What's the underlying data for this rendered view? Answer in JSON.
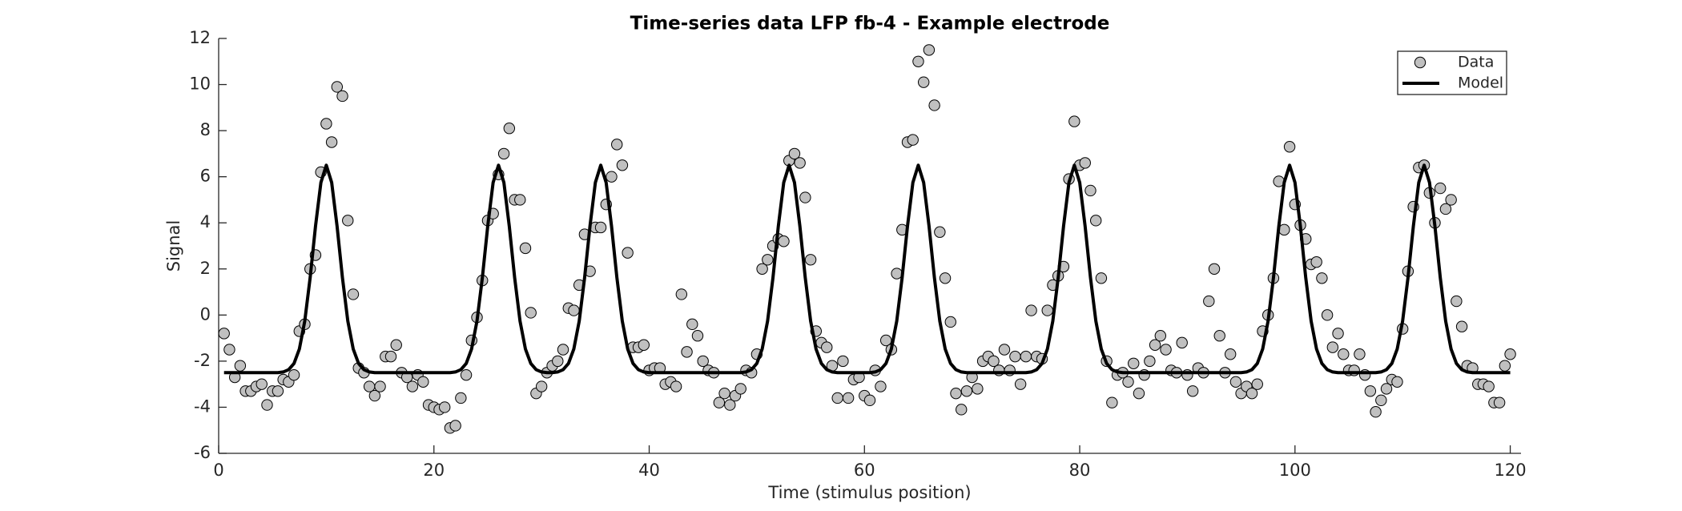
{
  "chart_data": {
    "type": "line",
    "title": "Time-series data LFP fb-4 - Example electrode",
    "xlabel": "Time (stimulus position)",
    "ylabel": "Signal",
    "xlim": [
      0,
      121
    ],
    "xticks": [
      0,
      20,
      40,
      60,
      80,
      100,
      120
    ],
    "ylim": [
      -6,
      12
    ],
    "yticks": [
      -6,
      -4,
      -2,
      0,
      2,
      4,
      6,
      8,
      10,
      12
    ],
    "legend": "northeast",
    "x": [
      0.5,
      1,
      1.5,
      2,
      2.5,
      3,
      3.5,
      4,
      4.5,
      5,
      5.5,
      6,
      6.5,
      7,
      7.5,
      8,
      8.5,
      9,
      9.5,
      10,
      10.5,
      11,
      11.5,
      12,
      12.5,
      13,
      13.5,
      14,
      14.5,
      15,
      15.5,
      16,
      16.5,
      17,
      17.5,
      18,
      18.5,
      19,
      19.5,
      20,
      20.5,
      21,
      21.5,
      22,
      22.5,
      23,
      23.5,
      24,
      24.5,
      25,
      25.5,
      26,
      26.5,
      27,
      27.5,
      28,
      28.5,
      29,
      29.5,
      30,
      30.5,
      31,
      31.5,
      32,
      32.5,
      33,
      33.5,
      34,
      34.5,
      35,
      35.5,
      36,
      36.5,
      37,
      37.5,
      38,
      38.5,
      39,
      39.5,
      40,
      40.5,
      41,
      41.5,
      42,
      42.5,
      43,
      43.5,
      44,
      44.5,
      45,
      45.5,
      46,
      46.5,
      47,
      47.5,
      48,
      48.5,
      49,
      49.5,
      50,
      50.5,
      51,
      51.5,
      52,
      52.5,
      53,
      53.5,
      54,
      54.5,
      55,
      55.5,
      56,
      56.5,
      57,
      57.5,
      58,
      58.5,
      59,
      59.5,
      60,
      60.5,
      61,
      61.5,
      62,
      62.5,
      63,
      63.5,
      64,
      64.5,
      65,
      65.5,
      66,
      66.5,
      67,
      67.5,
      68,
      68.5,
      69,
      69.5,
      70,
      70.5,
      71,
      71.5,
      72,
      72.5,
      73,
      73.5,
      74,
      74.5,
      75,
      75.5,
      76,
      76.5,
      77,
      77.5,
      78,
      78.5,
      79,
      79.5,
      80,
      80.5,
      81,
      81.5,
      82,
      82.5,
      83,
      83.5,
      84,
      84.5,
      85,
      85.5,
      86,
      86.5,
      87,
      87.5,
      88,
      88.5,
      89,
      89.5,
      90,
      90.5,
      91,
      91.5,
      92,
      92.5,
      93,
      93.5,
      94,
      94.5,
      95,
      95.5,
      96,
      96.5,
      97,
      97.5,
      98,
      98.5,
      99,
      99.5,
      100,
      100.5,
      101,
      101.5,
      102,
      102.5,
      103,
      103.5,
      104,
      104.5,
      105,
      105.5,
      106,
      106.5,
      107,
      107.5,
      108,
      108.5,
      109,
      109.5,
      110,
      110.5,
      111,
      111.5,
      112,
      112.5,
      113,
      113.5,
      114,
      114.5,
      115,
      115.5,
      116,
      116.5,
      117,
      117.5,
      118,
      118.5,
      119,
      119.5,
      120
    ],
    "series": [
      {
        "name": "Data",
        "type": "scatter",
        "color": "#c0c0c0",
        "values": [
          -0.8,
          -1.5,
          -2.7,
          -2.2,
          -3.3,
          -3.3,
          -3.1,
          -3.0,
          -3.9,
          -3.3,
          -3.3,
          -2.8,
          -2.9,
          -2.6,
          -0.7,
          -0.4,
          2.0,
          2.6,
          6.2,
          8.3,
          7.5,
          9.9,
          9.5,
          4.1,
          0.9,
          -2.3,
          -2.5,
          -3.1,
          -3.5,
          -3.1,
          -1.8,
          -1.8,
          -1.3,
          -2.5,
          -2.7,
          -3.1,
          -2.6,
          -2.9,
          -3.9,
          -4.0,
          -4.1,
          -4.0,
          -4.9,
          -4.8,
          -3.6,
          -2.6,
          -1.1,
          -0.1,
          1.5,
          4.1,
          4.4,
          6.1,
          7.0,
          8.1,
          5.0,
          5.0,
          2.9,
          0.1,
          -3.4,
          -3.1,
          -2.5,
          -2.2,
          -2.0,
          -1.5,
          0.3,
          0.2,
          1.3,
          3.5,
          1.9,
          3.8,
          3.8,
          4.8,
          6.0,
          7.4,
          6.5,
          2.7,
          -1.4,
          -1.4,
          -1.3,
          -2.4,
          -2.3,
          -2.3,
          -3.0,
          -2.9,
          -3.1,
          0.9,
          -1.6,
          -0.4,
          -0.9,
          -2.0,
          -2.4,
          -2.5,
          -3.8,
          -3.4,
          -3.9,
          -3.5,
          -3.2,
          -2.4,
          -2.5,
          -1.7,
          2.0,
          2.4,
          3.0,
          3.3,
          3.2,
          6.7,
          7.0,
          6.6,
          5.1,
          2.4,
          -0.7,
          -1.2,
          -1.4,
          -2.2,
          -3.6,
          -2.0,
          -3.6,
          -2.8,
          -2.7,
          -3.5,
          -3.7,
          -2.4,
          -3.1,
          -1.1,
          -1.5,
          1.8,
          3.7,
          7.5,
          7.6,
          11.0,
          10.1,
          11.5,
          9.1,
          3.6,
          1.6,
          -0.3,
          -3.4,
          -4.1,
          -3.3,
          -2.7,
          -3.2,
          -2.0,
          -1.8,
          -2.0,
          -2.4,
          -1.5,
          -2.4,
          -1.8,
          -3.0,
          -1.8,
          0.2,
          -1.8,
          -1.9,
          0.2,
          1.3,
          1.7,
          2.1,
          5.9,
          8.4,
          6.5,
          6.6,
          5.4,
          4.1,
          1.6,
          -2.0,
          -3.8,
          -2.6,
          -2.5,
          -2.9,
          -2.1,
          -3.4,
          -2.6,
          -2.0,
          -1.3,
          -0.9,
          -1.5,
          -2.4,
          -2.5,
          -1.2,
          -2.6,
          -3.3,
          -2.3,
          -2.5,
          0.6,
          2.0,
          -0.9,
          -2.5,
          -1.7,
          -2.9,
          -3.4,
          -3.1,
          -3.4,
          -3.0,
          -0.7,
          0.0,
          1.6,
          5.8,
          3.7,
          7.3,
          4.8,
          3.9,
          3.3,
          2.2,
          2.3,
          1.6,
          0.0,
          -1.4,
          -0.8,
          -1.7,
          -2.4,
          -2.4,
          -1.7,
          -2.6,
          -3.3,
          -4.2,
          -3.7,
          -3.2,
          -2.8,
          -2.9,
          -0.6,
          1.9,
          4.7,
          6.4,
          6.5,
          5.3,
          4.0,
          5.5,
          4.6,
          5.0,
          0.6,
          -0.5,
          -2.2,
          -2.3,
          -3.0,
          -3.0,
          -3.1,
          -3.8,
          -3.8,
          -2.2,
          -1.7
        ]
      },
      {
        "name": "Model",
        "type": "line",
        "color": "#000000",
        "values": [
          -2.5,
          -2.5,
          -2.5,
          -2.5,
          -2.5,
          -2.5,
          -2.5,
          -2.5,
          -2.5,
          -2.5,
          -2.5,
          -2.47,
          -2.37,
          -2.1,
          -1.47,
          -0.26,
          1.62,
          3.86,
          5.75,
          6.5,
          5.75,
          3.86,
          1.62,
          -0.26,
          -1.47,
          -2.1,
          -2.37,
          -2.47,
          -2.5,
          -2.5,
          -2.5,
          -2.5,
          -2.5,
          -2.5,
          -2.5,
          -2.5,
          -2.5,
          -2.5,
          -2.5,
          -2.5,
          -2.5,
          -2.5,
          -2.5,
          -2.47,
          -2.37,
          -2.1,
          -1.47,
          -0.26,
          1.62,
          3.86,
          5.75,
          6.5,
          5.75,
          3.86,
          1.62,
          -0.26,
          -1.47,
          -2.1,
          -2.37,
          -2.47,
          -2.5,
          -2.5,
          -2.47,
          -2.37,
          -2.1,
          -1.47,
          -0.26,
          1.62,
          3.86,
          5.75,
          6.5,
          5.75,
          3.86,
          1.62,
          -0.26,
          -1.47,
          -2.1,
          -2.37,
          -2.47,
          -2.5,
          -2.5,
          -2.5,
          -2.5,
          -2.5,
          -2.5,
          -2.5,
          -2.5,
          -2.5,
          -2.5,
          -2.5,
          -2.5,
          -2.5,
          -2.5,
          -2.5,
          -2.5,
          -2.5,
          -2.5,
          -2.47,
          -2.37,
          -2.1,
          -1.47,
          -0.26,
          1.62,
          3.86,
          5.75,
          6.5,
          5.75,
          3.86,
          1.62,
          -0.26,
          -1.47,
          -2.1,
          -2.37,
          -2.47,
          -2.5,
          -2.5,
          -2.5,
          -2.5,
          -2.5,
          -2.5,
          -2.5,
          -2.47,
          -2.37,
          -2.1,
          -1.47,
          -0.26,
          1.62,
          3.86,
          5.75,
          6.5,
          5.75,
          3.86,
          1.62,
          -0.26,
          -1.47,
          -2.1,
          -2.37,
          -2.47,
          -2.5,
          -2.5,
          -2.5,
          -2.5,
          -2.5,
          -2.5,
          -2.5,
          -2.5,
          -2.5,
          -2.5,
          -2.5,
          -2.5,
          -2.47,
          -2.37,
          -2.1,
          -1.47,
          -0.26,
          1.62,
          3.86,
          5.75,
          6.5,
          5.75,
          3.86,
          1.62,
          -0.26,
          -1.47,
          -2.1,
          -2.37,
          -2.47,
          -2.5,
          -2.5,
          -2.5,
          -2.5,
          -2.5,
          -2.5,
          -2.5,
          -2.5,
          -2.5,
          -2.5,
          -2.5,
          -2.5,
          -2.5,
          -2.5,
          -2.5,
          -2.5,
          -2.5,
          -2.5,
          -2.5,
          -2.5,
          -2.5,
          -2.5,
          -2.5,
          -2.47,
          -2.37,
          -2.1,
          -1.47,
          -0.26,
          1.62,
          3.86,
          5.75,
          6.5,
          5.75,
          3.86,
          1.62,
          -0.26,
          -1.47,
          -2.1,
          -2.37,
          -2.47,
          -2.5,
          -2.5,
          -2.5,
          -2.5,
          -2.5,
          -2.5,
          -2.5,
          -2.5,
          -2.47,
          -2.37,
          -2.1,
          -1.47,
          -0.26,
          1.62,
          3.86,
          5.75,
          6.5,
          5.75,
          3.86,
          1.62,
          -0.26,
          -1.47,
          -2.1,
          -2.37,
          -2.47,
          -2.5,
          -2.5,
          -2.5,
          -2.5,
          -2.5,
          -2.5,
          -2.5,
          -2.5
        ]
      }
    ]
  }
}
